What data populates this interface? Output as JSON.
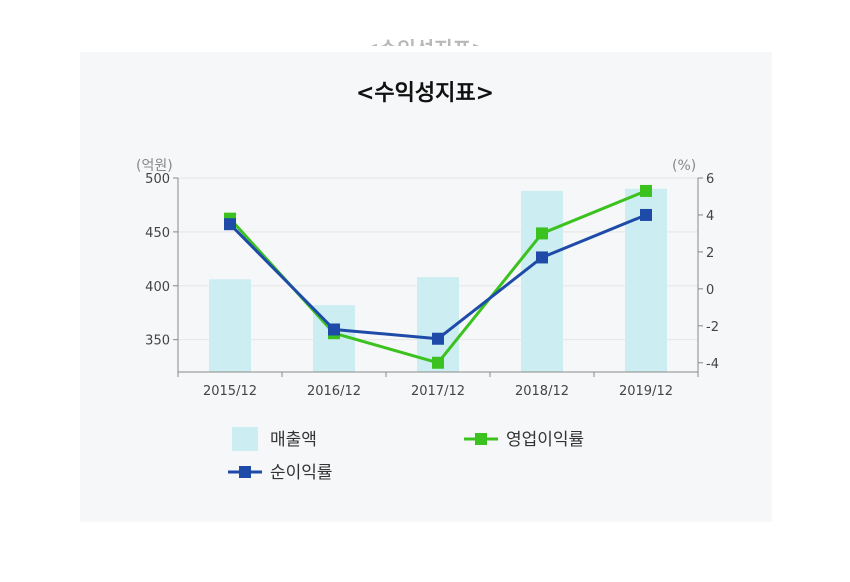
{
  "chart_data": {
    "type": "bar+line",
    "title": "<수익성지표>",
    "categories": [
      "2015/12",
      "2016/12",
      "2017/12",
      "2018/12",
      "2019/12"
    ],
    "left_axis": {
      "unit": "(억원)",
      "ylim": [
        320,
        500
      ],
      "ticks": [
        350,
        400,
        450,
        500
      ]
    },
    "right_axis": {
      "unit": "(%)",
      "ylim": [
        -4.5,
        6
      ],
      "ticks": [
        -4,
        -2,
        0,
        2,
        4,
        6
      ]
    },
    "series": [
      {
        "name": "매출액",
        "type": "bar",
        "axis": "left",
        "color": "#ccedf2",
        "values": [
          406,
          382,
          408,
          488,
          490
        ]
      },
      {
        "name": "영업이익률",
        "type": "line",
        "axis": "right",
        "color": "#3cc21f",
        "values": [
          3.8,
          -2.4,
          -4.0,
          3.0,
          5.3
        ]
      },
      {
        "name": "순이익률",
        "type": "line",
        "axis": "right",
        "color": "#1f4ba8",
        "values": [
          3.5,
          -2.2,
          -2.7,
          1.7,
          4.0
        ]
      }
    ],
    "grid": true,
    "legend_position": "bottom"
  }
}
